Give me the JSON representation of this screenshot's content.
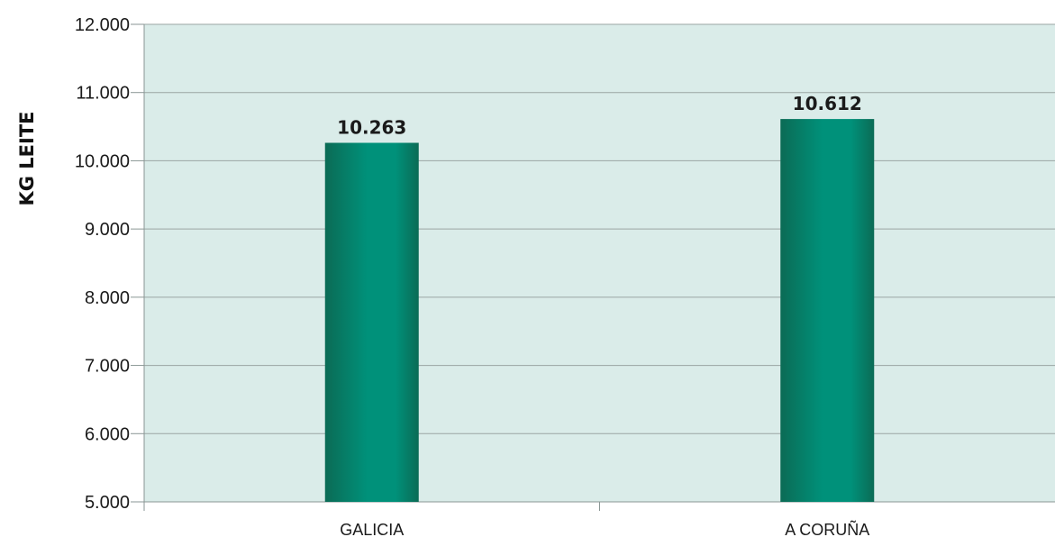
{
  "chart_data": {
    "type": "bar",
    "categories": [
      "GALICIA",
      "A CORUÑA"
    ],
    "values": [
      10263,
      10612
    ],
    "data_labels": [
      "10.263",
      "10.612"
    ],
    "title": "",
    "xlabel": "",
    "ylabel": "KG LEITE",
    "ylim": [
      5000,
      12000
    ],
    "y_ticks": [
      5000,
      6000,
      7000,
      8000,
      9000,
      10000,
      11000,
      12000
    ],
    "y_tick_labels": [
      "5.000",
      "6.000",
      "7.000",
      "8.000",
      "9.000",
      "10.000",
      "11.000",
      "12.000"
    ],
    "grid": true,
    "legend": "none",
    "colors": {
      "plot_background": "#daece9",
      "bar_dark": "#0b6b55",
      "bar_light": "#00917a",
      "gridline": "#9aa5a3",
      "axis": "#8a9694"
    }
  }
}
